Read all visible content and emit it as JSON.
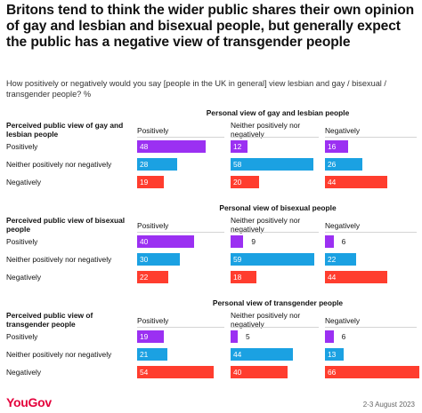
{
  "title": "Britons tend to think the wider public shares their own opinion of gay and lesbian and bisexual people, but generally expect the public has a negative view of transgender people",
  "subtitle": "How positively or negatively would you say [people in the UK in general] view lesbian and gay / bisexual / transgender people? %",
  "brand": "YouGov",
  "date": "2-3 August 2023",
  "colors": {
    "Positively": "#9b30f2",
    "Neither positively nor negatively": "#1ba1e2",
    "Negatively": "#ff3d2e"
  },
  "chart_data": [
    {
      "type": "table",
      "title": "Personal view of gay and lesbian people",
      "row_header": "Perceived public view of gay and lesbian people",
      "columns": [
        "Positively",
        "Neither positively nor negatively",
        "Negatively"
      ],
      "rows": [
        {
          "label": "Positively",
          "values": [
            48,
            12,
            16
          ]
        },
        {
          "label": "Neither positively nor negatively",
          "values": [
            28,
            58,
            26
          ]
        },
        {
          "label": "Negatively",
          "values": [
            19,
            20,
            44
          ]
        }
      ]
    },
    {
      "type": "table",
      "title": "Personal view of bisexual people",
      "row_header": "Perceived public view of bisexual people",
      "columns": [
        "Positively",
        "Neither positively nor negatively",
        "Negatively"
      ],
      "rows": [
        {
          "label": "Positively",
          "values": [
            40,
            9,
            6
          ]
        },
        {
          "label": "Neither positively nor negatively",
          "values": [
            30,
            59,
            22
          ]
        },
        {
          "label": "Negatively",
          "values": [
            22,
            18,
            44
          ]
        }
      ]
    },
    {
      "type": "table",
      "title": "Personal view of transgender people",
      "row_header": "Perceived public view of transgender people",
      "columns": [
        "Positively",
        "Neither positively nor negatively",
        "Negatively"
      ],
      "rows": [
        {
          "label": "Positively",
          "values": [
            19,
            5,
            6
          ]
        },
        {
          "label": "Neither positively nor negatively",
          "values": [
            21,
            44,
            13
          ]
        },
        {
          "label": "Negatively",
          "values": [
            54,
            40,
            66
          ]
        }
      ]
    }
  ]
}
